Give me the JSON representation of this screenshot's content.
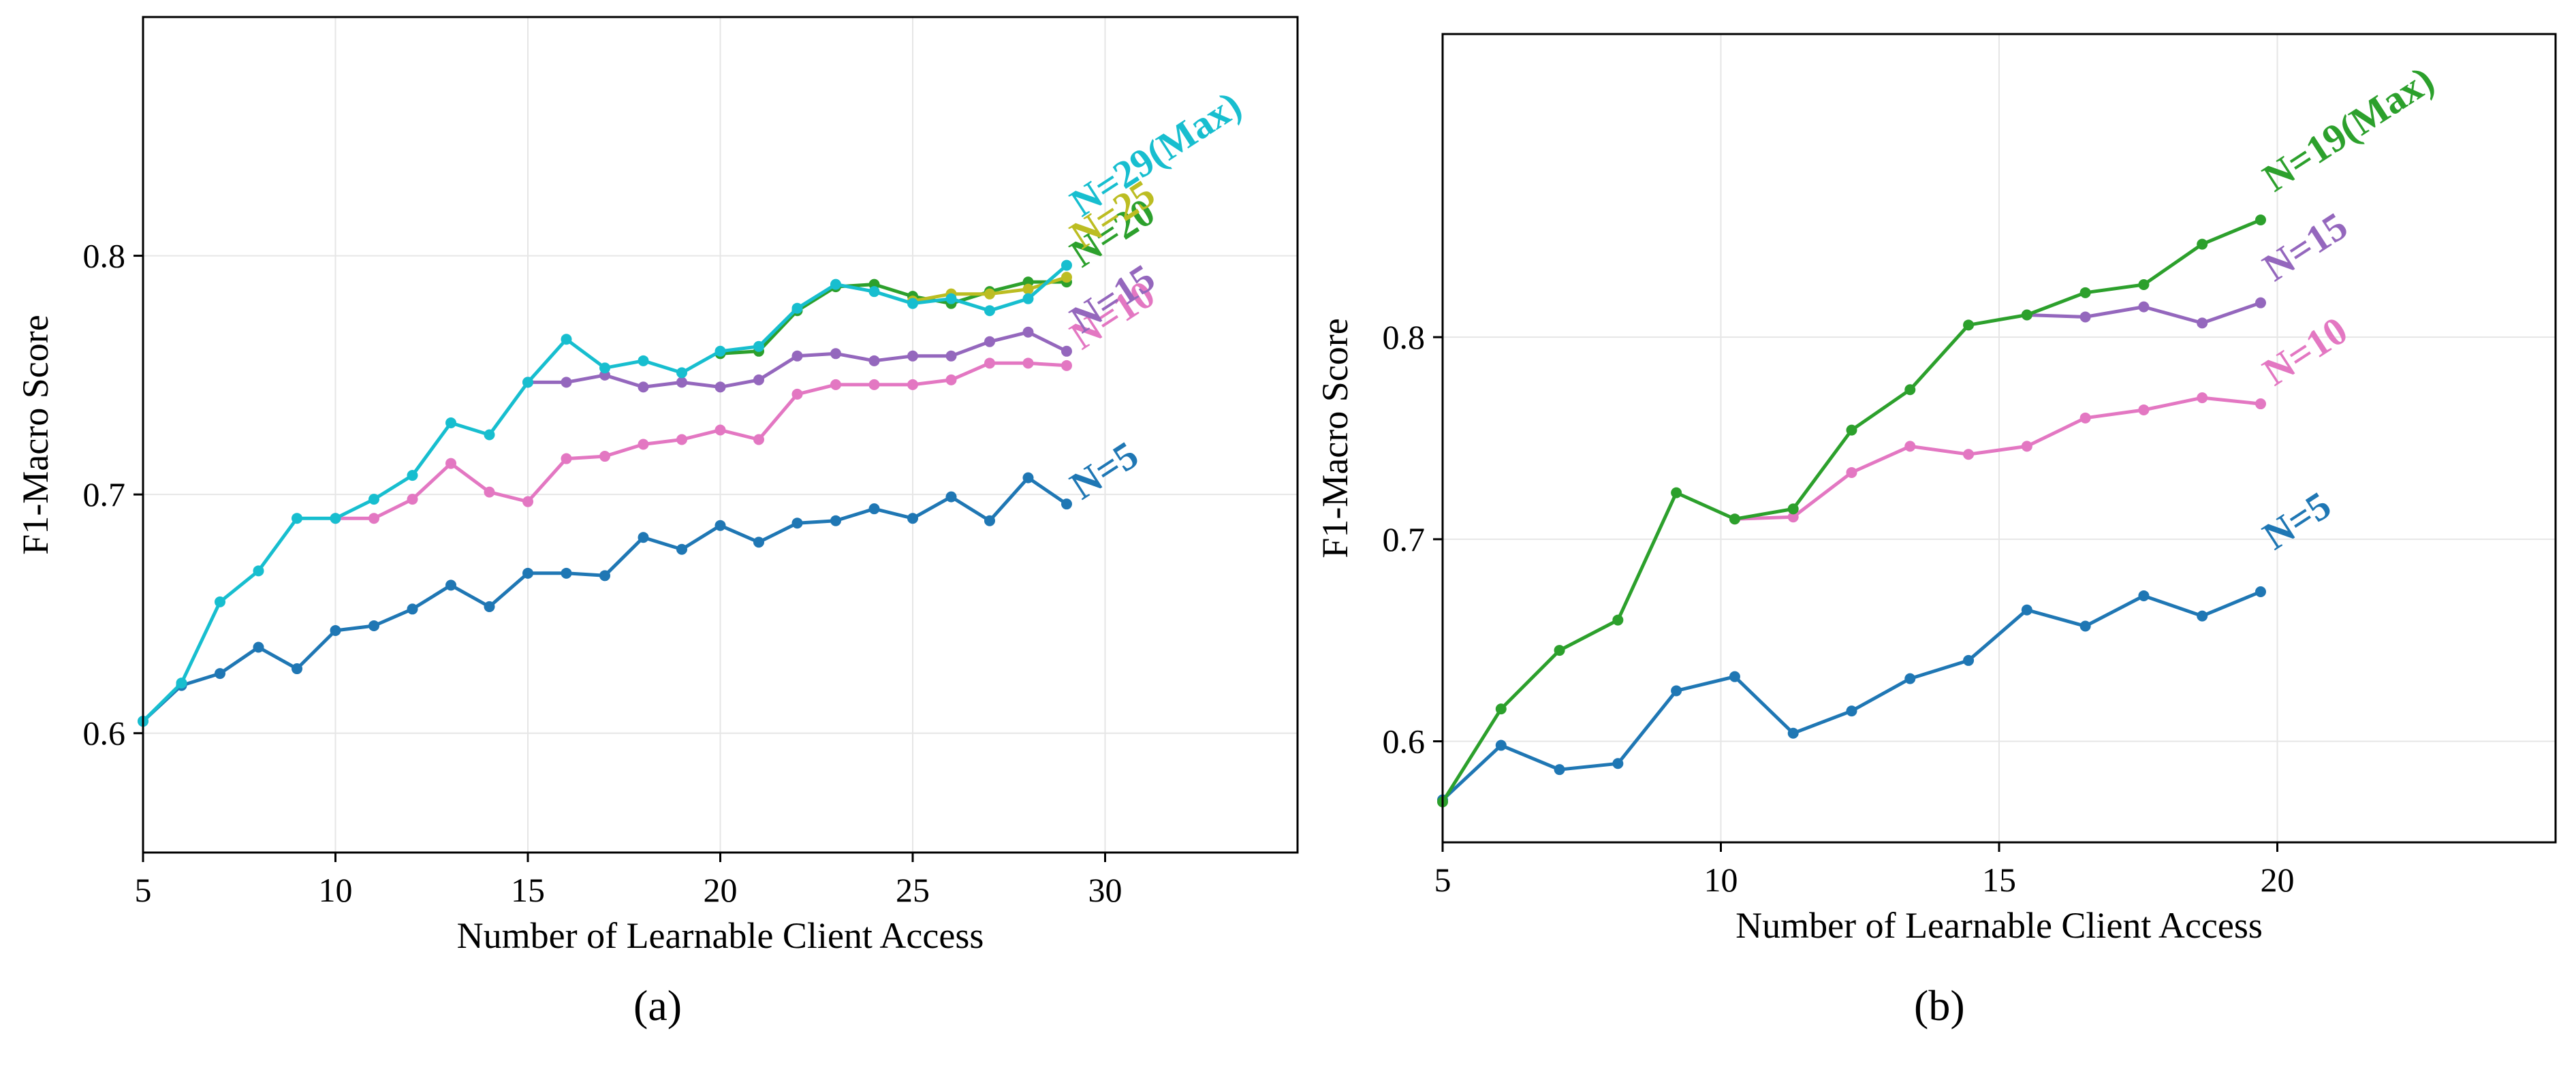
{
  "figure": {
    "captions": [
      "(a)",
      "(b)"
    ]
  },
  "chart_data": [
    {
      "type": "line",
      "panel": "(a)",
      "title": "",
      "xlabel": "Number of Learnable Client Access",
      "ylabel": "F1-Macro Score",
      "xlim": [
        5,
        35
      ],
      "ylim": [
        0.55,
        0.9
      ],
      "xticks": [
        5,
        10,
        15,
        20,
        25,
        30
      ],
      "yticks": [
        0.6,
        0.7,
        0.8
      ],
      "xtick_labels": [
        "5",
        "10",
        "15",
        "20",
        "25",
        "30"
      ],
      "ytick_labels": [
        "0.6",
        "0.7",
        "0.8"
      ],
      "grid": true,
      "series": [
        {
          "name": "N=5",
          "label": "N=5",
          "color": "#1f77b4",
          "x": [
            5,
            6,
            7,
            8,
            9,
            10,
            11,
            12,
            13,
            14,
            15,
            16,
            17,
            18,
            19,
            20,
            21,
            22,
            23,
            24,
            25,
            26,
            27,
            28,
            29
          ],
          "values": [
            0.605,
            0.62,
            0.625,
            0.636,
            0.627,
            0.643,
            0.645,
            0.652,
            0.662,
            0.653,
            0.667,
            0.667,
            0.666,
            0.682,
            0.677,
            0.687,
            0.68,
            0.688,
            0.689,
            0.694,
            0.69,
            0.699,
            0.689,
            0.707,
            0.696
          ]
        },
        {
          "name": "N=10",
          "label": "N=10",
          "color": "#e377c2",
          "x": [
            10,
            11,
            12,
            13,
            14,
            15,
            16,
            17,
            18,
            19,
            20,
            21,
            22,
            23,
            24,
            25,
            26,
            27,
            28,
            29
          ],
          "values": [
            0.69,
            0.69,
            0.698,
            0.713,
            0.701,
            0.697,
            0.715,
            0.716,
            0.721,
            0.723,
            0.727,
            0.723,
            0.742,
            0.746,
            0.746,
            0.746,
            0.748,
            0.755,
            0.755,
            0.754
          ]
        },
        {
          "name": "N=15",
          "label": "N=15",
          "color": "#9467bd",
          "x": [
            15,
            16,
            17,
            18,
            19,
            20,
            21,
            22,
            23,
            24,
            25,
            26,
            27,
            28,
            29
          ],
          "values": [
            0.747,
            0.747,
            0.75,
            0.745,
            0.747,
            0.745,
            0.748,
            0.758,
            0.759,
            0.756,
            0.758,
            0.758,
            0.764,
            0.768,
            0.76
          ]
        },
        {
          "name": "N=20",
          "label": "N=20",
          "color": "#2ca02c",
          "x": [
            20,
            21,
            22,
            23,
            24,
            25,
            26,
            27,
            28,
            29
          ],
          "values": [
            0.759,
            0.76,
            0.777,
            0.787,
            0.788,
            0.783,
            0.78,
            0.785,
            0.789,
            0.789
          ]
        },
        {
          "name": "N=25",
          "label": "N=25",
          "color": "#bcbd22",
          "x": [
            25,
            26,
            27,
            28,
            29
          ],
          "values": [
            0.781,
            0.784,
            0.784,
            0.786,
            0.791
          ]
        },
        {
          "name": "N=29(Max)",
          "label": "N=29(Max)",
          "color": "#17becf",
          "x": [
            5,
            6,
            7,
            8,
            9,
            10,
            11,
            12,
            13,
            14,
            15,
            16,
            17,
            18,
            19,
            20,
            21,
            22,
            23,
            24,
            25,
            26,
            27,
            28,
            29
          ],
          "values": [
            0.605,
            0.621,
            0.655,
            0.668,
            0.69,
            0.69,
            0.698,
            0.708,
            0.73,
            0.725,
            0.747,
            0.765,
            0.753,
            0.756,
            0.751,
            0.76,
            0.762,
            0.778,
            0.788,
            0.785,
            0.78,
            0.782,
            0.777,
            0.782,
            0.796
          ]
        }
      ]
    },
    {
      "type": "line",
      "panel": "(b)",
      "title": "",
      "xlabel": "Number of Learnable Client Access",
      "ylabel": "F1-Macro Score",
      "xlim": [
        5,
        25
      ],
      "ylim": [
        0.55,
        0.95
      ],
      "xticks": [
        5,
        10,
        15,
        20
      ],
      "yticks": [
        0.6,
        0.7,
        0.8
      ],
      "xtick_labels": [
        "5",
        "10",
        "15",
        "20"
      ],
      "ytick_labels": [
        "0.6",
        "0.7",
        "0.8"
      ],
      "grid": true,
      "series": [
        {
          "name": "N=5",
          "label": "N=5",
          "color": "#1f77b4",
          "x": [
            5,
            6.05,
            7.1,
            8.15,
            9.2,
            10.25,
            11.3,
            12.35,
            13.4,
            14.45,
            15.5,
            16.55,
            17.6,
            18.65,
            19.7
          ],
          "values": [
            0.571,
            0.598,
            0.586,
            0.589,
            0.625,
            0.632,
            0.604,
            0.615,
            0.631,
            0.64,
            0.665,
            0.657,
            0.672,
            0.662,
            0.674
          ]
        },
        {
          "name": "N=10",
          "label": "N=10",
          "color": "#e377c2",
          "x": [
            10.25,
            11.3,
            12.35,
            13.4,
            14.45,
            15.5,
            16.55,
            17.6,
            18.65,
            19.7
          ],
          "values": [
            0.71,
            0.711,
            0.733,
            0.746,
            0.742,
            0.746,
            0.76,
            0.764,
            0.77,
            0.767
          ]
        },
        {
          "name": "N=15",
          "label": "N=15",
          "color": "#9467bd",
          "x": [
            15.5,
            16.55,
            17.6,
            18.65,
            19.7
          ],
          "values": [
            0.811,
            0.81,
            0.815,
            0.807,
            0.817
          ]
        },
        {
          "name": "N=19(Max)",
          "label": "N=19(Max)",
          "color": "#2ca02c",
          "x": [
            5,
            6.05,
            7.1,
            8.15,
            9.2,
            10.25,
            11.3,
            12.35,
            13.4,
            14.45,
            15.5,
            16.55,
            17.6,
            18.65,
            19.7
          ],
          "values": [
            0.57,
            0.616,
            0.645,
            0.66,
            0.723,
            0.71,
            0.715,
            0.754,
            0.774,
            0.806,
            0.811,
            0.822,
            0.826,
            0.846,
            0.858
          ]
        }
      ]
    }
  ]
}
